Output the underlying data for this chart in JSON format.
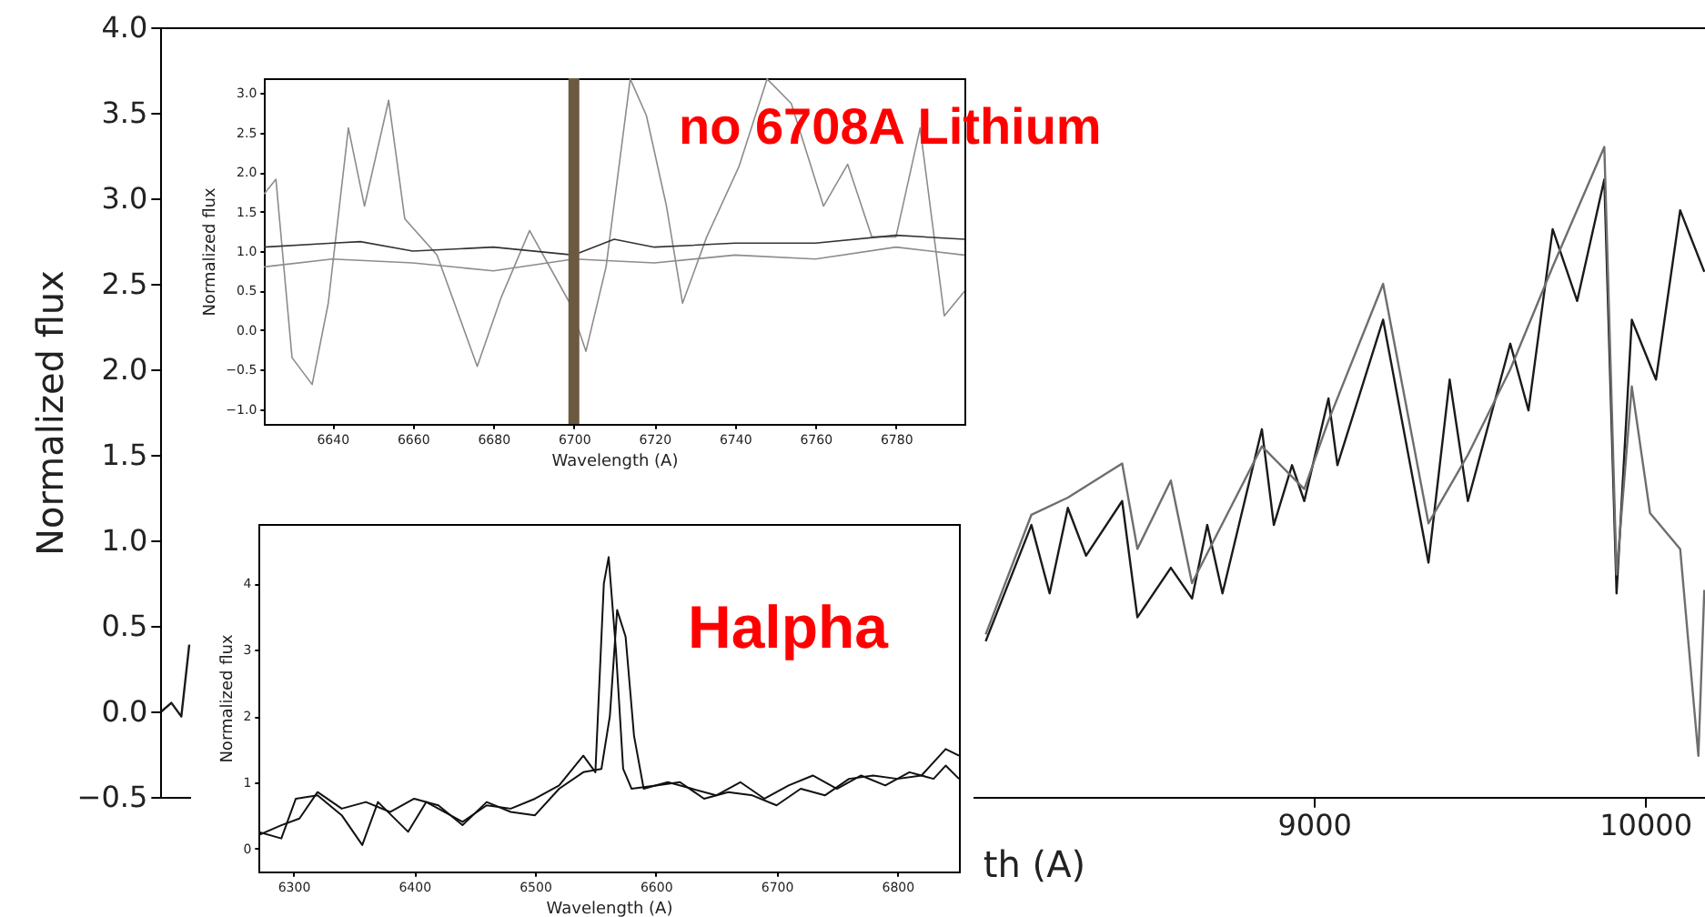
{
  "chart_data": [
    {
      "type": "line",
      "xlabel": "th (A)",
      "ylabel": "Normalized flux",
      "xlim": [
        5516,
        10181
      ],
      "ylim": [
        -0.5,
        4.0
      ],
      "xticks": [
        9000,
        10000
      ],
      "yticks": [
        {
          "value": -0.5,
          "label": "−0.5"
        },
        {
          "value": 0,
          "label": "0.0"
        },
        0.5,
        {
          "value": 1,
          "label": "1.0"
        },
        1.5,
        {
          "value": 2,
          "label": "2.0"
        },
        2.5,
        {
          "value": 3,
          "label": "3.0"
        },
        3.5,
        {
          "value": 4,
          "label": "4.0"
        }
      ],
      "grid": false,
      "series": [
        {
          "color": "#1a1a1a",
          "x": [
            5520,
            5550,
            5580,
            5604
          ],
          "values": [
            0.0,
            0.05,
            -0.03,
            0.39
          ]
        },
        {
          "color": "#1a1a1a",
          "x": [
            8009,
            8147,
            8202,
            8257,
            8312,
            8421,
            8467,
            8568,
            8632,
            8678,
            8724,
            8843,
            8879,
            8934,
            8971,
            9044,
            9071,
            9209,
            9346,
            9410,
            9465,
            9593,
            9648,
            9721,
            9795,
            9877,
            9914,
            9960,
            10033,
            10106,
            10179
          ],
          "values": [
            0.41,
            1.09,
            0.69,
            1.19,
            0.91,
            1.23,
            0.55,
            0.84,
            0.66,
            1.09,
            0.69,
            1.65,
            1.09,
            1.44,
            1.23,
            1.83,
            1.44,
            2.29,
            0.87,
            1.94,
            1.23,
            2.15,
            1.76,
            2.82,
            2.4,
            3.11,
            0.69,
            2.29,
            1.94,
            2.93,
            2.57
          ]
        },
        {
          "color": "#6e6e6e",
          "x": [
            8009,
            8147,
            8257,
            8421,
            8467,
            8568,
            8632,
            8843,
            8971,
            9044,
            9209,
            9346,
            9465,
            9593,
            9721,
            9877,
            9914,
            9960,
            10015,
            10106,
            10161,
            10179
          ],
          "values": [
            0.45,
            1.15,
            1.25,
            1.45,
            0.95,
            1.35,
            0.75,
            1.55,
            1.3,
            1.7,
            2.5,
            1.1,
            1.5,
            2.0,
            2.6,
            3.3,
            0.8,
            1.9,
            1.16,
            0.95,
            -0.26,
            0.71
          ]
        }
      ]
    },
    {
      "type": "line",
      "xlabel": "Wavelength (A)",
      "ylabel": "Normalized flux",
      "xlim": [
        6623,
        6797
      ],
      "ylim": [
        -1.19,
        3.19
      ],
      "xticks": [
        6640,
        6660,
        6680,
        6700,
        6720,
        6740,
        6760,
        6780
      ],
      "yticks": [
        {
          "value": -1,
          "label": "−1.0"
        },
        {
          "value": -0.5,
          "label": "−0.5"
        },
        {
          "value": 0,
          "label": "0.0"
        },
        0.5,
        {
          "value": 1,
          "label": "1.0"
        },
        1.5,
        {
          "value": 2,
          "label": "2.0"
        },
        2.5,
        {
          "value": 3,
          "label": "3.0"
        }
      ],
      "grid": false,
      "annotations": [
        "no 6708A Lithium"
      ],
      "ref_lines": [
        {
          "axis": "x",
          "value": 6700,
          "color": "#6b5a40"
        }
      ],
      "series": [
        {
          "color": "#8c8c8c",
          "x": [
            6623,
            6626,
            6630,
            6635,
            6639,
            6644,
            6648,
            6654,
            6658,
            6666,
            6676,
            6682,
            6689,
            6699,
            6703,
            6708,
            6714,
            6718,
            6723,
            6727,
            6733,
            6741,
            6748,
            6754,
            6762,
            6768,
            6774,
            6780,
            6786,
            6792,
            6797
          ],
          "values": [
            1.72,
            1.91,
            -0.35,
            -0.69,
            0.34,
            2.56,
            1.57,
            2.91,
            1.41,
            0.95,
            -0.46,
            0.42,
            1.26,
            0.34,
            -0.27,
            0.8,
            3.18,
            2.72,
            1.57,
            0.34,
            1.18,
            2.07,
            3.18,
            2.87,
            1.57,
            2.1,
            1.18,
            1.18,
            2.56,
            0.18,
            0.49
          ]
        },
        {
          "color": "#8c8c8c",
          "x": [
            6623,
            6640,
            6660,
            6680,
            6700,
            6720,
            6740,
            6760,
            6780,
            6797
          ],
          "values": [
            0.8,
            0.9,
            0.85,
            0.75,
            0.9,
            0.85,
            0.95,
            0.9,
            1.05,
            0.95
          ]
        },
        {
          "color": "#333333",
          "x": [
            6623,
            6640,
            6647,
            6660,
            6680,
            6700,
            6710,
            6720,
            6740,
            6760,
            6780,
            6797
          ],
          "values": [
            1.05,
            1.1,
            1.12,
            1.0,
            1.05,
            0.95,
            1.15,
            1.05,
            1.1,
            1.1,
            1.2,
            1.15
          ]
        }
      ]
    },
    {
      "type": "line",
      "xlabel": "Wavelength (A)",
      "ylabel": "Normalized flux",
      "xlim": [
        6271,
        6851
      ],
      "ylim": [
        -0.35,
        4.9
      ],
      "xticks": [
        6300,
        6400,
        6500,
        6600,
        6700,
        6800
      ],
      "yticks": [
        0,
        1,
        2,
        3,
        4
      ],
      "grid": false,
      "annotations": [
        "Halpha"
      ],
      "series": [
        {
          "color": "#111111",
          "x": [
            6271,
            6290,
            6302,
            6320,
            6340,
            6357,
            6370,
            6395,
            6410,
            6440,
            6460,
            6480,
            6500,
            6520,
            6540,
            6550,
            6557,
            6561,
            6567,
            6573,
            6580,
            6600,
            6620,
            6640,
            6660,
            6680,
            6700,
            6720,
            6740,
            6760,
            6780,
            6800,
            6820,
            6840,
            6851
          ],
          "values": [
            0.25,
            0.15,
            0.75,
            0.8,
            0.5,
            0.05,
            0.7,
            0.25,
            0.7,
            0.4,
            0.65,
            0.6,
            0.75,
            0.95,
            1.4,
            1.15,
            4.0,
            4.4,
            3.0,
            1.2,
            0.9,
            0.95,
            1.0,
            0.75,
            0.85,
            0.8,
            0.65,
            0.9,
            0.8,
            1.05,
            1.1,
            1.05,
            1.1,
            1.5,
            1.4
          ]
        },
        {
          "color": "#111111",
          "x": [
            6271,
            6290,
            6305,
            6320,
            6340,
            6360,
            6380,
            6400,
            6420,
            6440,
            6460,
            6480,
            6500,
            6520,
            6540,
            6555,
            6562,
            6568,
            6575,
            6582,
            6590,
            6610,
            6630,
            6650,
            6670,
            6690,
            6710,
            6730,
            6750,
            6770,
            6790,
            6810,
            6830,
            6840,
            6851
          ],
          "values": [
            0.2,
            0.35,
            0.45,
            0.85,
            0.6,
            0.7,
            0.55,
            0.75,
            0.65,
            0.35,
            0.7,
            0.55,
            0.5,
            0.9,
            1.15,
            1.2,
            2.0,
            3.6,
            3.2,
            1.7,
            0.9,
            1.0,
            0.9,
            0.8,
            1.0,
            0.75,
            0.95,
            1.1,
            0.9,
            1.1,
            0.95,
            1.15,
            1.05,
            1.25,
            1.05
          ]
        }
      ]
    }
  ]
}
